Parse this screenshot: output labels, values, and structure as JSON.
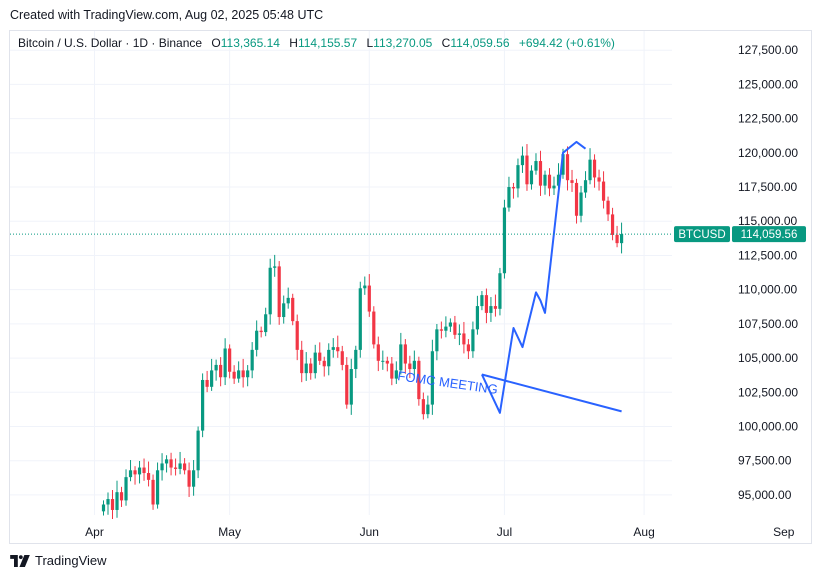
{
  "header": {
    "created_text": "Created with TradingView.com, Aug 02, 2025 05:48 UTC"
  },
  "legend": {
    "symbol": "Bitcoin / U.S. Dollar · 1D · Binance",
    "open_label": "O",
    "open": "113,365.14",
    "high_label": "H",
    "high": "114,155.57",
    "low_label": "L",
    "low": "113,270.05",
    "close_label": "C",
    "close": "114,059.56",
    "change": "+694.42 (+0.61%)"
  },
  "price_tag": {
    "symbol": "BTCUSD",
    "price": "114,059.56",
    "value": 114059.56
  },
  "annotation": {
    "text": "FOMC MEETING"
  },
  "footer": {
    "brand": "TradingView"
  },
  "colors": {
    "up": "#089981",
    "down": "#f23645",
    "drawing": "#2962ff",
    "grid": "#f0f3fa",
    "text": "#131722"
  },
  "chart_data": {
    "type": "candlestick",
    "title": "Bitcoin / U.S. Dollar · 1D · Binance",
    "ylim": [
      93500,
      129000
    ],
    "y_ticks": [
      95000,
      97500,
      100000,
      102500,
      105000,
      107500,
      110000,
      112500,
      115000,
      117500,
      120000,
      122500,
      125000,
      127500
    ],
    "y_tick_labels": [
      "95,000.00",
      "97,500.00",
      "100,000.00",
      "102,500.00",
      "105,000.00",
      "107,500.00",
      "110,000.00",
      "112,500.00",
      "115,000.00",
      "117,500.00",
      "120,000.00",
      "122,500.00",
      "125,000.00",
      "127,500.00"
    ],
    "x_ticks": [
      {
        "label": "Apr",
        "day": -2
      },
      {
        "label": "May",
        "day": 28
      },
      {
        "label": "Jun",
        "day": 59
      },
      {
        "label": "Jul",
        "day": 89
      },
      {
        "label": "Aug",
        "day": 120
      },
      {
        "label": "Sep",
        "day": 151
      }
    ],
    "day_zero": "2025-04-03",
    "closes": [
      94300,
      94700,
      93900,
      95200,
      94600,
      96300,
      96800,
      96500,
      97000,
      96600,
      96100,
      94300,
      96800,
      97300,
      97600,
      97000,
      96900,
      97300,
      96800,
      95600,
      96800,
      99700,
      103400,
      102900,
      104100,
      104500,
      103600,
      105700,
      104000,
      103500,
      104100,
      103600,
      104100,
      105600,
      107000,
      106900,
      108200,
      111600,
      111700,
      108000,
      109000,
      109400,
      107700,
      105600,
      103900,
      104600,
      103900,
      105400,
      104800,
      104400,
      105600,
      105800,
      105500,
      104500,
      101600,
      104200,
      105600,
      110100,
      110300,
      108400,
      106000,
      104800,
      104800,
      104600,
      103500,
      104100,
      106000,
      104600,
      104200,
      104800,
      102000,
      100900,
      101600,
      105500,
      107100,
      107000,
      107300,
      107600,
      106700,
      106800,
      106000,
      105500,
      107100,
      108800,
      109600,
      108300,
      108800,
      108600,
      111200,
      116000,
      117500,
      117400,
      119100,
      119800,
      117700,
      118700,
      119400,
      117600,
      118400,
      117400,
      117600,
      118400,
      119900,
      118000,
      117800,
      115400,
      117100,
      118000,
      119500,
      118200,
      117900,
      116500,
      115500,
      114000,
      113400,
      114060
    ],
    "drawings": [
      {
        "type": "polyline",
        "points": [
          [
            84,
            103800
          ],
          [
            88,
            101000
          ],
          [
            91,
            107200
          ],
          [
            93,
            105800
          ],
          [
            96,
            109800
          ],
          [
            97,
            109200
          ],
          [
            98,
            108300
          ],
          [
            102,
            120000
          ],
          [
            105,
            120800
          ],
          [
            107,
            120300
          ]
        ]
      },
      {
        "type": "line",
        "points": [
          [
            84,
            103800
          ],
          [
            115,
            101100
          ]
        ]
      }
    ]
  }
}
